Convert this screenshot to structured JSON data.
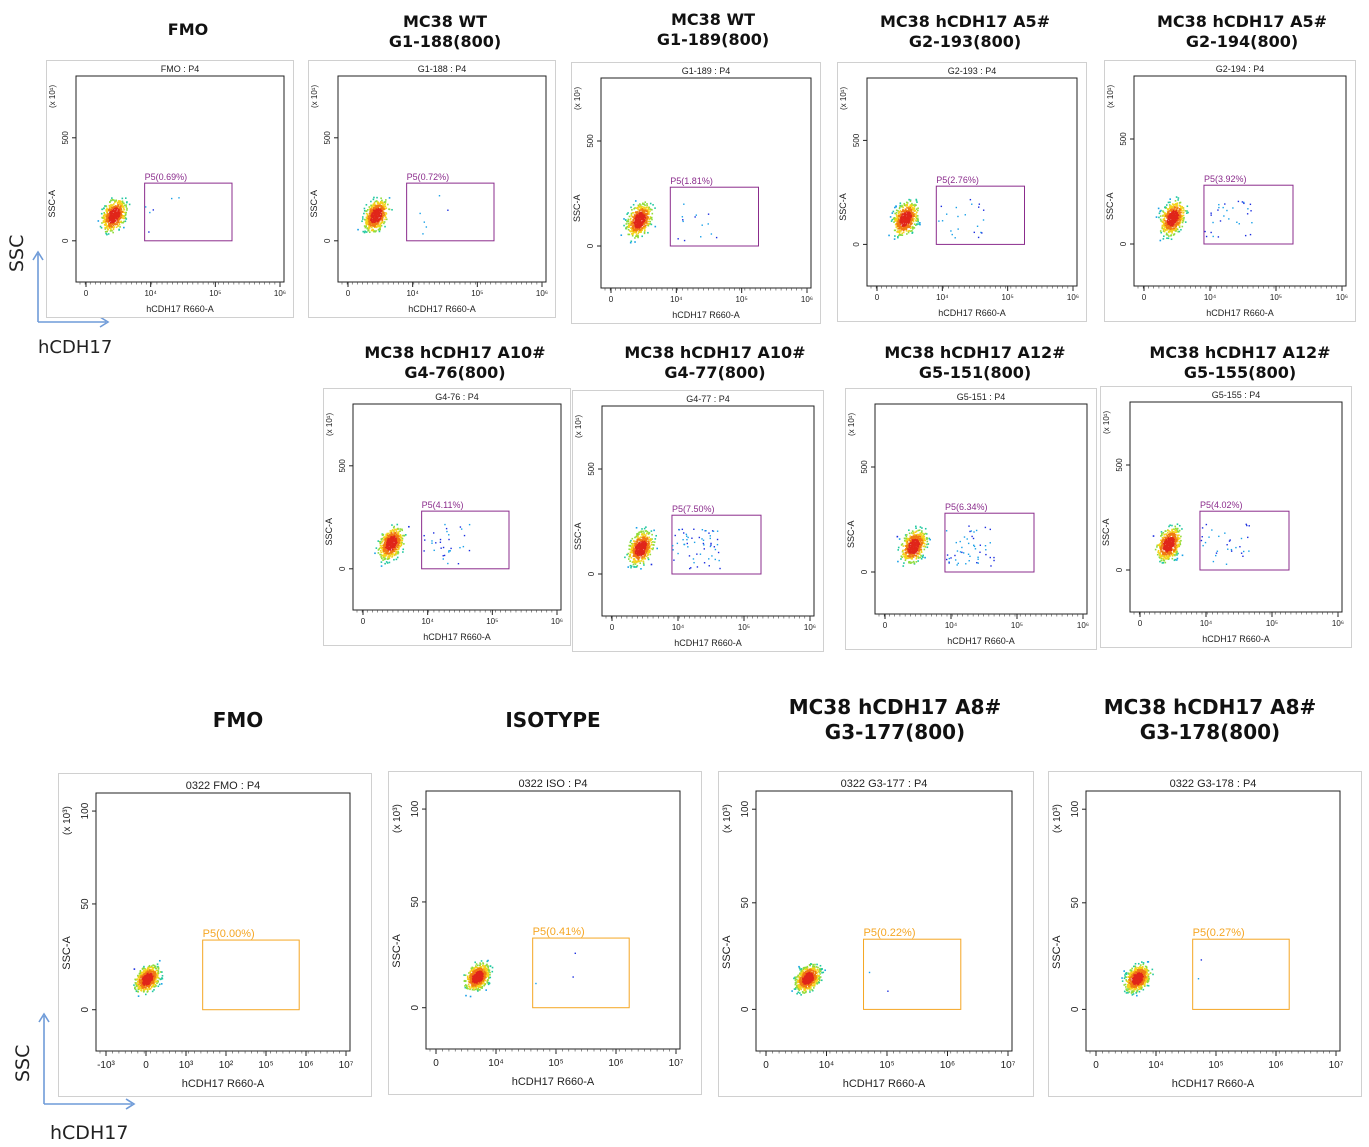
{
  "row1": {
    "titles": [
      [
        "FMO"
      ],
      [
        "MC38  WT",
        "G1-188(800)"
      ],
      [
        "MC38  WT",
        "G1-189(800)"
      ],
      [
        "MC38 hCDH17 A5#",
        "G2-193(800)"
      ],
      [
        "MC38 hCDH17 A5#",
        "G2-194(800)"
      ]
    ]
  },
  "row2": {
    "titles": [
      [
        "MC38 hCDH17 A10#",
        "G4-76(800)"
      ],
      [
        "MC38 hCDH17 A10#",
        "G4-77(800)"
      ],
      [
        "MC38 hCDH17 A12#",
        "G5-151(800)"
      ],
      [
        "MC38 hCDH17 A12#",
        "G5-155(800)"
      ]
    ]
  },
  "row3": {
    "titles": [
      [
        "FMO"
      ],
      [
        "ISOTYPE"
      ],
      [
        "MC38 hCDH17 A8#",
        "G3-177(800)"
      ],
      [
        "MC38 hCDH17 A8#",
        "G3-178(800)"
      ]
    ]
  },
  "side": {
    "top": {
      "y_label": "SSC",
      "x_label": "hCDH17"
    },
    "bottom": {
      "y_label": "SSC",
      "x_label": "hCDH17"
    }
  },
  "colors": {
    "gate_purple": "#8b2c8c",
    "gate_orange": "#f5a623",
    "axis_arrow": "#6f9bd8"
  },
  "chart_data": [
    {
      "type": "scatter",
      "panel_title": "FMO : P4",
      "xlabel": "hCDH17 R660-A",
      "ylabel": "SSC-A",
      "y_exponent": "(x 10¹)",
      "x_ticks": [
        "0",
        "10⁴",
        "10⁵",
        "10⁶"
      ],
      "y_ticks": [
        "0",
        "500"
      ],
      "gate": {
        "label": "P5(0.69%)",
        "percent": 0.69
      },
      "style": "purple"
    },
    {
      "type": "scatter",
      "panel_title": "G1-188 : P4",
      "xlabel": "hCDH17 R660-A",
      "ylabel": "SSC-A",
      "y_exponent": "(x 10¹)",
      "x_ticks": [
        "0",
        "10⁴",
        "10⁵",
        "10⁶"
      ],
      "y_ticks": [
        "0",
        "500"
      ],
      "gate": {
        "label": "P5(0.72%)",
        "percent": 0.72
      },
      "style": "purple"
    },
    {
      "type": "scatter",
      "panel_title": "G1-189 : P4",
      "xlabel": "hCDH17 R660-A",
      "ylabel": "SSC-A",
      "y_exponent": "(x 10¹)",
      "x_ticks": [
        "0",
        "10⁴",
        "10⁵",
        "10⁶"
      ],
      "y_ticks": [
        "0",
        "500"
      ],
      "gate": {
        "label": "P5(1.81%)",
        "percent": 1.81
      },
      "style": "purple"
    },
    {
      "type": "scatter",
      "panel_title": "G2-193 : P4",
      "xlabel": "hCDH17 R660-A",
      "ylabel": "SSC-A",
      "y_exponent": "(x 10¹)",
      "x_ticks": [
        "0",
        "10⁴",
        "10⁵",
        "10⁶"
      ],
      "y_ticks": [
        "0",
        "500"
      ],
      "gate": {
        "label": "P5(2.76%)",
        "percent": 2.76
      },
      "style": "purple"
    },
    {
      "type": "scatter",
      "panel_title": "G2-194 : P4",
      "xlabel": "hCDH17 R660-A",
      "ylabel": "SSC-A",
      "y_exponent": "(x 10¹)",
      "x_ticks": [
        "0",
        "10⁴",
        "10⁵",
        "10⁶"
      ],
      "y_ticks": [
        "0",
        "500"
      ],
      "gate": {
        "label": "P5(3.92%)",
        "percent": 3.92
      },
      "style": "purple"
    },
    {
      "type": "scatter",
      "panel_title": "G4-76 : P4",
      "xlabel": "hCDH17 R660-A",
      "ylabel": "SSC-A",
      "y_exponent": "(x 10¹)",
      "x_ticks": [
        "0",
        "10⁴",
        "10⁵",
        "10⁶"
      ],
      "y_ticks": [
        "0",
        "500"
      ],
      "gate": {
        "label": "P5(4.11%)",
        "percent": 4.11
      },
      "style": "purple"
    },
    {
      "type": "scatter",
      "panel_title": "G4-77 : P4",
      "xlabel": "hCDH17 R660-A",
      "ylabel": "SSC-A",
      "y_exponent": "(x 10¹)",
      "x_ticks": [
        "0",
        "10⁴",
        "10⁵",
        "10⁶"
      ],
      "y_ticks": [
        "0",
        "500"
      ],
      "gate": {
        "label": "P5(7.50%)",
        "percent": 7.5
      },
      "style": "purple"
    },
    {
      "type": "scatter",
      "panel_title": "G5-151 : P4",
      "xlabel": "hCDH17 R660-A",
      "ylabel": "SSC-A",
      "y_exponent": "(x 10¹)",
      "x_ticks": [
        "0",
        "10⁴",
        "10⁵",
        "10⁶"
      ],
      "y_ticks": [
        "0",
        "500"
      ],
      "gate": {
        "label": "P5(6.34%)",
        "percent": 6.34
      },
      "style": "purple"
    },
    {
      "type": "scatter",
      "panel_title": "G5-155 : P4",
      "xlabel": "hCDH17 R660-A",
      "ylabel": "SSC-A",
      "y_exponent": "(x 10¹)",
      "x_ticks": [
        "0",
        "10⁴",
        "10⁵",
        "10⁶"
      ],
      "y_ticks": [
        "0",
        "500"
      ],
      "gate": {
        "label": "P5(4.02%)",
        "percent": 4.02
      },
      "style": "purple"
    },
    {
      "type": "scatter",
      "panel_title": "0322 FMO : P4",
      "xlabel": "hCDH17 R660-A",
      "ylabel": "SSC-A",
      "y_exponent": "(x 10³)",
      "x_ticks": [
        "-10³",
        "0",
        "10³",
        "10²",
        "10⁵",
        "10⁶",
        "10⁷"
      ],
      "y_ticks": [
        "0",
        "50",
        "100"
      ],
      "gate": {
        "label": "P5(0.00%)",
        "percent": 0.0
      },
      "style": "orange"
    },
    {
      "type": "scatter",
      "panel_title": "0322 ISO : P4",
      "xlabel": "hCDH17 R660-A",
      "ylabel": "SSC-A",
      "y_exponent": "(x 10³)",
      "x_ticks": [
        "0",
        "10⁴",
        "10⁵",
        "10⁶",
        "10⁷"
      ],
      "y_ticks": [
        "0",
        "50",
        "100"
      ],
      "gate": {
        "label": "P5(0.41%)",
        "percent": 0.41
      },
      "style": "orange"
    },
    {
      "type": "scatter",
      "panel_title": "0322 G3-177 : P4",
      "xlabel": "hCDH17 R660-A",
      "ylabel": "SSC-A",
      "y_exponent": "(x 10³)",
      "x_ticks": [
        "0",
        "10⁴",
        "10⁵",
        "10⁶",
        "10⁷"
      ],
      "y_ticks": [
        "0",
        "50",
        "100"
      ],
      "gate": {
        "label": "P5(0.22%)",
        "percent": 0.22
      },
      "style": "orange"
    },
    {
      "type": "scatter",
      "panel_title": "0322 G3-178 : P4",
      "xlabel": "hCDH17 R660-A",
      "ylabel": "SSC-A",
      "y_exponent": "(x 10³)",
      "x_ticks": [
        "0",
        "10⁴",
        "10⁵",
        "10⁶",
        "10⁷"
      ],
      "y_ticks": [
        "0",
        "50",
        "100"
      ],
      "gate": {
        "label": "P5(0.27%)",
        "percent": 0.27
      },
      "style": "orange"
    }
  ]
}
